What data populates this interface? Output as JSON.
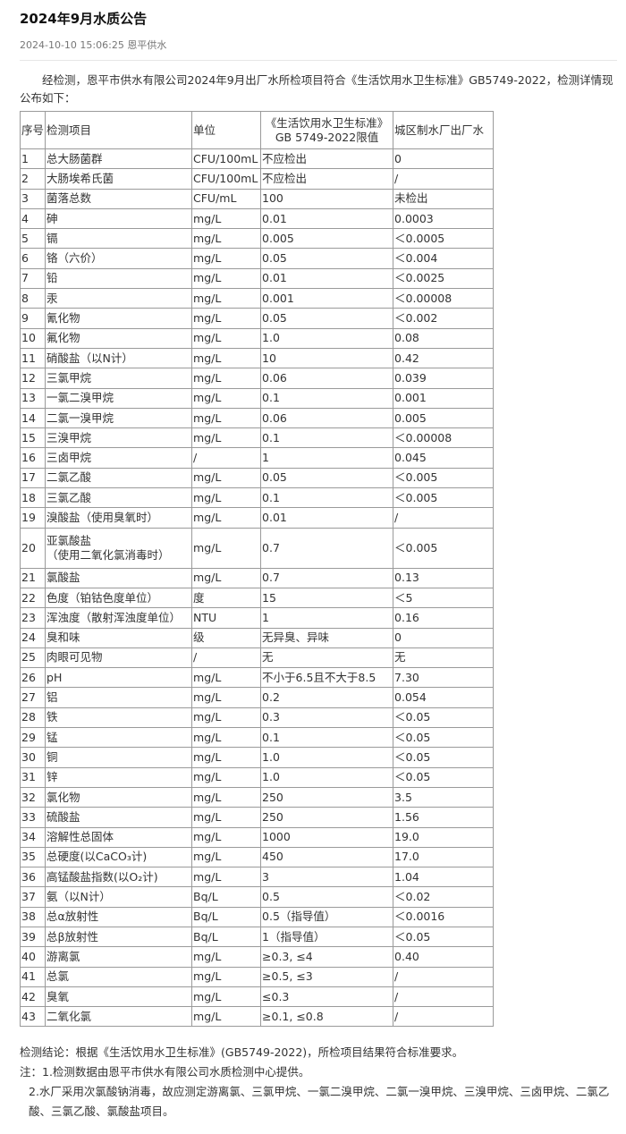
{
  "article": {
    "title": "2024年9月水质公告",
    "date": "2024-10-10 15:06:25",
    "source": "恩平供水",
    "intro": "经检测，恩平市供水有限公司2024年9月出厂水所检项目符合《生活饮用水卫生标准》GB5749-2022，检测详情现公布如下："
  },
  "table": {
    "headers": [
      "序号",
      "检测项目",
      "单位",
      "《生活饮用水卫生标准》GB 5749-2022限值",
      "城区制水厂出厂水"
    ],
    "rows": [
      [
        "1",
        "总大肠菌群",
        "CFU/100mL",
        "不应检出",
        "0"
      ],
      [
        "2",
        "大肠埃希氏菌",
        "CFU/100mL",
        "不应检出",
        "/"
      ],
      [
        "3",
        "菌落总数",
        "CFU/mL",
        "100",
        "未检出"
      ],
      [
        "4",
        "砷",
        "mg/L",
        "0.01",
        "0.0003"
      ],
      [
        "5",
        "镉",
        "mg/L",
        "0.005",
        "＜0.0005"
      ],
      [
        "6",
        "铬（六价）",
        "mg/L",
        "0.05",
        "＜0.004"
      ],
      [
        "7",
        "铅",
        "mg/L",
        "0.01",
        "＜0.0025"
      ],
      [
        "8",
        "汞",
        "mg/L",
        "0.001",
        "＜0.00008"
      ],
      [
        "9",
        "氰化物",
        "mg/L",
        "0.05",
        "＜0.002"
      ],
      [
        "10",
        "氟化物",
        "mg/L",
        "1.0",
        "0.08"
      ],
      [
        "11",
        "硝酸盐（以N计）",
        "mg/L",
        "10",
        "0.42"
      ],
      [
        "12",
        "三氯甲烷",
        "mg/L",
        "0.06",
        "0.039"
      ],
      [
        "13",
        "一氯二溴甲烷",
        "mg/L",
        "0.1",
        "0.001"
      ],
      [
        "14",
        "二氯一溴甲烷",
        "mg/L",
        "0.06",
        "0.005"
      ],
      [
        "15",
        "三溴甲烷",
        "mg/L",
        "0.1",
        "＜0.00008"
      ],
      [
        "16",
        "三卤甲烷",
        "/",
        "1",
        "0.045"
      ],
      [
        "17",
        "二氯乙酸",
        "mg/L",
        "0.05",
        "＜0.005"
      ],
      [
        "18",
        "三氯乙酸",
        "mg/L",
        "0.1",
        "＜0.005"
      ],
      [
        "19",
        "溴酸盐（使用臭氧时）",
        "mg/L",
        "0.01",
        "/"
      ],
      [
        "20",
        "亚氯酸盐\n（使用二氧化氯消毒时）",
        "mg/L",
        "0.7",
        "＜0.005"
      ],
      [
        "21",
        "氯酸盐",
        "mg/L",
        "0.7",
        "0.13"
      ],
      [
        "22",
        "色度（铂钴色度单位）",
        "度",
        "15",
        "＜5"
      ],
      [
        "23",
        "浑浊度（散射浑浊度单位）",
        "NTU",
        "1",
        "0.16"
      ],
      [
        "24",
        "臭和味",
        "级",
        "无异臭、异味",
        "0"
      ],
      [
        "25",
        "肉眼可见物",
        "/",
        "无",
        "无"
      ],
      [
        "26",
        "pH",
        "mg/L",
        "不小于6.5且不大于8.5",
        "7.30"
      ],
      [
        "27",
        "铝",
        "mg/L",
        "0.2",
        "0.054"
      ],
      [
        "28",
        "铁",
        "mg/L",
        "0.3",
        "＜0.05"
      ],
      [
        "29",
        "锰",
        "mg/L",
        "0.1",
        "＜0.05"
      ],
      [
        "30",
        "铜",
        "mg/L",
        "1.0",
        "＜0.05"
      ],
      [
        "31",
        "锌",
        "mg/L",
        "1.0",
        "＜0.05"
      ],
      [
        "32",
        "氯化物",
        "mg/L",
        "250",
        "3.5"
      ],
      [
        "33",
        "硫酸盐",
        "mg/L",
        "250",
        "1.56"
      ],
      [
        "34",
        "溶解性总固体",
        "mg/L",
        "1000",
        "19.0"
      ],
      [
        "35",
        "总硬度(以CaCO₃计)",
        "mg/L",
        "450",
        "17.0"
      ],
      [
        "36",
        "高锰酸盐指数(以O₂计)",
        "mg/L",
        "3",
        "1.04"
      ],
      [
        "37",
        "氨（以N计）",
        "Bq/L",
        "0.5",
        "＜0.02"
      ],
      [
        "38",
        "总α放射性",
        "Bq/L",
        "0.5（指导值）",
        "＜0.0016"
      ],
      [
        "39",
        "总β放射性",
        "Bq/L",
        "1（指导值）",
        "＜0.05"
      ],
      [
        "40",
        "游离氯",
        "mg/L",
        "≥0.3, ≤4",
        "0.40"
      ],
      [
        "41",
        "总氯",
        "mg/L",
        "≥0.5, ≤3",
        "/"
      ],
      [
        "42",
        "臭氧",
        "mg/L",
        "≤0.3",
        "/"
      ],
      [
        "43",
        "二氧化氯",
        "mg/L",
        "≥0.1, ≤0.8",
        "/"
      ]
    ]
  },
  "footer": {
    "conclusion": "检测结论：根据《生活饮用水卫生标准》(GB5749-2022)，所检项目结果符合标准要求。",
    "note1": "注：1.检测数据由恩平市供水有限公司水质检测中心提供。",
    "note2": "2.水厂采用次氯酸钠消毒，故应测定游离氯、三氯甲烷、一氯二溴甲烷、二氯一溴甲烷、三溴甲烷、三卤甲烷、二氯乙酸、三氯乙酸、氯酸盐项目。"
  }
}
